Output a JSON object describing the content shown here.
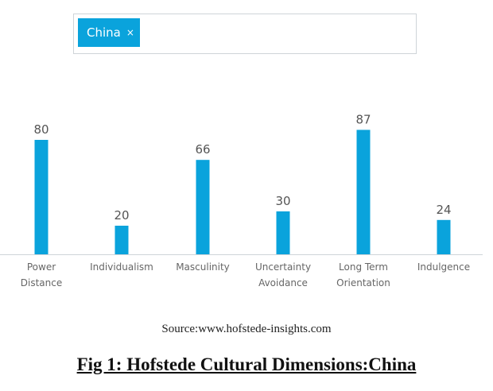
{
  "selector": {
    "tag_label": "China",
    "close_glyph": "×"
  },
  "chart_data": {
    "type": "bar",
    "categories": [
      [
        "Power",
        "Distance"
      ],
      [
        "Individualism"
      ],
      [
        "Masculinity"
      ],
      [
        "Uncertainty",
        "Avoidance"
      ],
      [
        "Long Term",
        "Orientation"
      ],
      [
        "Indulgence"
      ]
    ],
    "values": [
      80,
      20,
      66,
      30,
      87,
      24
    ],
    "ylim": [
      0,
      100
    ],
    "grid": false,
    "bar_color": "#0aa3dc",
    "data_labels": true
  },
  "source": "Source:www.hofstede-insights.com",
  "caption": "Fig 1: Hofstede Cultural Dimensions:China"
}
